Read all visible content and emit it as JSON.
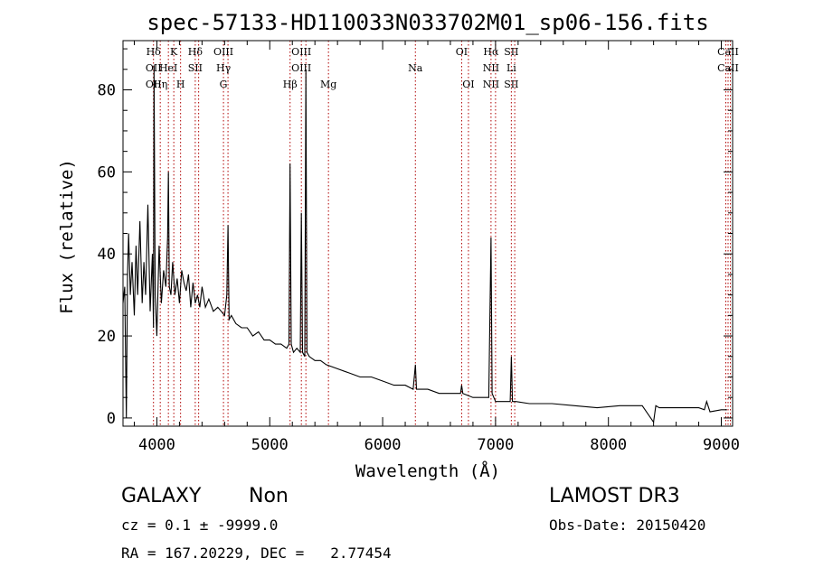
{
  "chart_data": {
    "type": "line",
    "title": "spec-57133-HD110033N033702M01_sp06-156.fits",
    "xlabel": "Wavelength (Å)",
    "ylabel": "Flux (relative)",
    "xlim": [
      3700,
      9100
    ],
    "ylim": [
      -2,
      92
    ],
    "xticks": [
      "4000",
      "5000",
      "6000",
      "7000",
      "8000",
      "9000"
    ],
    "xtick_values": [
      4000,
      5000,
      6000,
      7000,
      8000,
      9000
    ],
    "yticks": [
      "0",
      "20",
      "40",
      "60",
      "80"
    ],
    "ytick_values": [
      0,
      20,
      40,
      60,
      80
    ],
    "lines": [
      {
        "w": 3970,
        "labels": [
          "Hδ",
          "OII",
          "OII"
        ]
      },
      {
        "w": 4030,
        "labels": [
          "",
          "",
          "Hη"
        ]
      },
      {
        "w": 4102,
        "labels": [
          "",
          "HeI",
          ""
        ]
      },
      {
        "w": 4150,
        "labels": [
          "K",
          "",
          ""
        ]
      },
      {
        "w": 4210,
        "labels": [
          "",
          "",
          "H"
        ]
      },
      {
        "w": 4340,
        "labels": [
          "Hδ",
          "SII",
          ""
        ]
      },
      {
        "w": 4370,
        "labels": [
          "",
          "",
          ""
        ]
      },
      {
        "w": 4590,
        "labels": [
          "OIII",
          "Hγ",
          "G"
        ]
      },
      {
        "w": 4630,
        "labels": [
          "",
          "",
          ""
        ]
      },
      {
        "w": 5180,
        "labels": [
          "",
          "",
          "Hβ"
        ]
      },
      {
        "w": 5280,
        "labels": [
          "OIII",
          "OIII",
          ""
        ]
      },
      {
        "w": 5320,
        "labels": [
          "",
          "",
          ""
        ]
      },
      {
        "w": 5520,
        "labels": [
          "",
          "",
          "Mg"
        ]
      },
      {
        "w": 6290,
        "labels": [
          "",
          "Na",
          ""
        ]
      },
      {
        "w": 6700,
        "labels": [
          "OI",
          "",
          ""
        ]
      },
      {
        "w": 6760,
        "labels": [
          "",
          "",
          "OI"
        ]
      },
      {
        "w": 6960,
        "labels": [
          "Hα",
          "NII",
          "NII"
        ]
      },
      {
        "w": 7000,
        "labels": [
          "",
          "",
          ""
        ]
      },
      {
        "w": 7140,
        "labels": [
          "SII",
          "Li",
          "SII"
        ]
      },
      {
        "w": 7170,
        "labels": [
          "",
          "",
          ""
        ]
      },
      {
        "w": 9040,
        "labels": [
          "",
          "",
          ""
        ]
      },
      {
        "w": 9060,
        "labels": [
          "CaII",
          "CaII",
          ""
        ]
      },
      {
        "w": 9080,
        "labels": [
          "",
          "",
          ""
        ]
      }
    ],
    "series": [
      {
        "name": "flux",
        "x": [
          3700,
          3715,
          3730,
          3740,
          3750,
          3765,
          3780,
          3800,
          3815,
          3830,
          3850,
          3870,
          3885,
          3900,
          3920,
          3940,
          3960,
          3970,
          3975,
          3985,
          4000,
          4020,
          4040,
          4060,
          4080,
          4095,
          4102,
          4110,
          4125,
          4140,
          4160,
          4180,
          4200,
          4220,
          4240,
          4260,
          4280,
          4300,
          4320,
          4340,
          4360,
          4380,
          4400,
          4430,
          4460,
          4500,
          4540,
          4570,
          4600,
          4620,
          4630,
          4640,
          4660,
          4700,
          4750,
          4800,
          4850,
          4900,
          4950,
          5000,
          5050,
          5100,
          5150,
          5170,
          5180,
          5190,
          5210,
          5240,
          5270,
          5280,
          5290,
          5310,
          5320,
          5330,
          5350,
          5400,
          5450,
          5500,
          5600,
          5700,
          5800,
          5900,
          6000,
          6100,
          6200,
          6270,
          6290,
          6300,
          6320,
          6400,
          6500,
          6600,
          6690,
          6700,
          6710,
          6800,
          6900,
          6940,
          6960,
          6970,
          6985,
          7000,
          7050,
          7100,
          7130,
          7140,
          7150,
          7180,
          7300,
          7500,
          7700,
          7900,
          8100,
          8300,
          8400,
          8420,
          8450,
          8600,
          8800,
          8850,
          8870,
          8900,
          9000,
          9050
        ],
        "values": [
          28,
          32,
          0,
          35,
          45,
          30,
          38,
          25,
          42,
          30,
          48,
          28,
          38,
          30,
          52,
          26,
          40,
          22,
          86,
          30,
          20,
          42,
          28,
          36,
          32,
          44,
          60,
          32,
          30,
          38,
          30,
          34,
          28,
          36,
          33,
          31,
          35,
          27,
          33,
          28,
          30,
          27,
          32,
          27,
          29,
          26,
          27,
          26,
          25,
          30,
          47,
          24,
          25,
          23,
          22,
          22,
          20,
          21,
          19,
          19,
          18,
          18,
          17,
          18,
          62,
          18,
          16,
          17,
          16,
          50,
          16,
          15,
          85,
          16,
          15,
          14,
          14,
          13,
          12,
          11,
          10,
          10,
          9,
          8,
          8,
          7,
          13,
          7,
          7,
          7,
          6,
          6,
          6,
          8,
          6,
          5,
          5,
          5,
          44,
          6,
          5,
          4,
          4,
          4,
          4,
          15,
          4,
          4,
          3.5,
          3.5,
          3,
          2.5,
          3,
          3,
          -1,
          3,
          2.5,
          2.5,
          2.5,
          2,
          4,
          1.5,
          2,
          2
        ]
      }
    ]
  },
  "info": {
    "class": "GALAXY",
    "subclass": "Non",
    "survey": "LAMOST DR3",
    "cz": "cz = 0.1 ± -9999.0",
    "obsdate": "Obs-Date: 20150420",
    "radec": "RA = 167.20229, DEC =   2.77454"
  }
}
